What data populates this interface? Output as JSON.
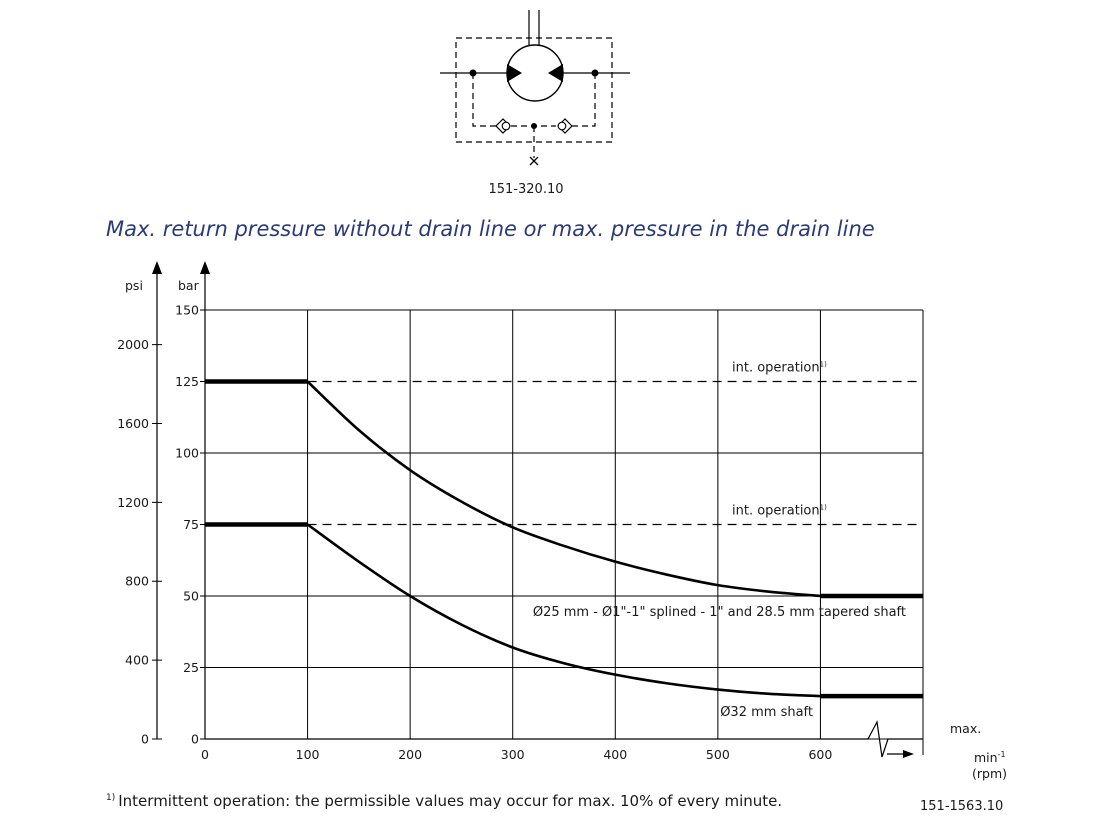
{
  "symbol_code": "151-320.10",
  "title": "Max. return pressure without drain line or max. pressure in the drain line",
  "footnote": "Intermittent operation: the permissible values may occur for max. 10% of every minute.",
  "footnote_mark": "1)",
  "figure_code": "151-1563.10",
  "colors": {
    "title": "#2b3b78",
    "lines": "#000000"
  },
  "chart_data": {
    "type": "line",
    "title": "Max. return pressure without drain line or max. pressure in the drain line",
    "xlabel": "min-1 (rpm)",
    "xunit_main": "min",
    "xunit_sup": "-1",
    "xunit_sub": "(rpm)",
    "xmax_label": "max.",
    "xlim": [
      0,
      700
    ],
    "x_ticks": [
      0,
      100,
      200,
      300,
      400,
      500,
      600
    ],
    "ylabel": "bar",
    "ylim": [
      0,
      150
    ],
    "y_ticks": [
      0,
      25,
      50,
      75,
      100,
      125,
      150
    ],
    "y2label": "psi",
    "y2_ticks": [
      0,
      400,
      800,
      1200,
      1600,
      2000
    ],
    "grid": true,
    "reference_lines": [
      {
        "y": 125,
        "label": "int. operation",
        "sup": "1)",
        "style": "dashed"
      },
      {
        "y": 75,
        "label": "int. operation",
        "sup": "1)",
        "style": "dashed"
      }
    ],
    "series": [
      {
        "name": "Ø25 mm - Ø1\"-1\" splined - 1\" and 28.5 mm tapered shaft",
        "x": [
          0,
          100,
          150,
          200,
          250,
          300,
          350,
          400,
          450,
          500,
          550,
          600,
          700
        ],
        "y": [
          125,
          125,
          108,
          94,
          83,
          74,
          67.5,
          62,
          57.5,
          53.8,
          51.5,
          50,
          50
        ]
      },
      {
        "name": "Ø32 mm shaft",
        "x": [
          0,
          100,
          150,
          200,
          250,
          300,
          350,
          400,
          450,
          500,
          550,
          600,
          700
        ],
        "y": [
          75,
          75,
          62,
          50,
          40,
          32,
          26.5,
          22.5,
          19.5,
          17.3,
          15.8,
          15,
          15
        ]
      }
    ]
  }
}
